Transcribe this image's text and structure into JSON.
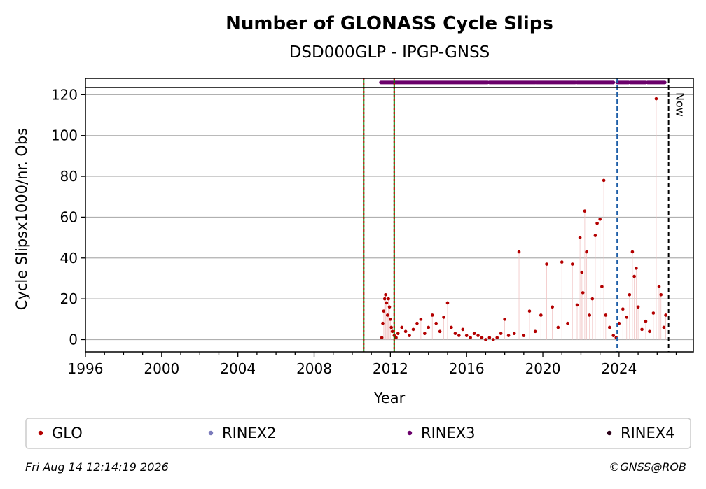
{
  "footer": {
    "timestamp": "Fri Aug 14 12:14:19 2026",
    "copyright": "©GNSS@ROB"
  },
  "chart_data": {
    "type": "scatter",
    "title": "Number of GLONASS Cycle Slips",
    "subtitle": "DSD000GLP - IPGP-GNSS",
    "xlabel": "Year",
    "ylabel": "Cycle Slipsx1000/nr. Obs",
    "xlim": [
      1996,
      2027.9
    ],
    "ylim": [
      -6,
      128
    ],
    "xticks": [
      1996,
      2000,
      2004,
      2008,
      2012,
      2016,
      2020,
      2024
    ],
    "yticks": [
      0,
      20,
      40,
      60,
      80,
      100,
      120
    ],
    "grid": "horizontal",
    "legend_position": "bottom",
    "legend": [
      {
        "name": "GLO",
        "color": "#b30000"
      },
      {
        "name": "RINEX2",
        "color": "#7b7bbb"
      },
      {
        "name": "RINEX3",
        "color": "#6b006b"
      },
      {
        "name": "RINEX4",
        "color": "#2a0018"
      }
    ],
    "vertical_lines": [
      {
        "x": 2010.6,
        "style": "dashed",
        "colors": [
          "#008000",
          "#cc0000"
        ]
      },
      {
        "x": 2012.2,
        "style": "dashed",
        "colors": [
          "#008000",
          "#cc0000"
        ]
      },
      {
        "x": 2023.9,
        "style": "dashed",
        "colors": [
          "#1f5fa8"
        ]
      },
      {
        "x": 2026.6,
        "style": "dashed",
        "colors": [
          "#000000"
        ],
        "label": "Now"
      }
    ],
    "top_bar": {
      "y": 126,
      "color": "#6b006b",
      "segments": [
        [
          2011.5,
          2017.1
        ],
        [
          2017.2,
          2019.6
        ],
        [
          2019.65,
          2021.7
        ],
        [
          2021.8,
          2023.7
        ],
        [
          2023.9,
          2024.5
        ],
        [
          2024.6,
          2025.4
        ],
        [
          2025.5,
          2026.4
        ]
      ]
    },
    "series": [
      {
        "name": "GLO",
        "color": "#b30000",
        "x": [
          2011.55,
          2011.6,
          2011.65,
          2011.7,
          2011.75,
          2011.8,
          2011.85,
          2011.9,
          2011.95,
          2012.0,
          2012.05,
          2012.1,
          2012.2,
          2012.3,
          2012.4,
          2012.6,
          2012.8,
          2013.0,
          2013.2,
          2013.4,
          2013.6,
          2013.8,
          2014.0,
          2014.2,
          2014.4,
          2014.6,
          2014.8,
          2015.0,
          2015.2,
          2015.4,
          2015.6,
          2015.8,
          2016.0,
          2016.2,
          2016.4,
          2016.6,
          2016.8,
          2017.0,
          2017.2,
          2017.4,
          2017.6,
          2017.8,
          2018.0,
          2018.2,
          2018.5,
          2018.75,
          2019.0,
          2019.3,
          2019.6,
          2019.9,
          2020.2,
          2020.5,
          2020.8,
          2021.0,
          2021.3,
          2021.55,
          2021.8,
          2021.95,
          2022.05,
          2022.1,
          2022.2,
          2022.3,
          2022.45,
          2022.6,
          2022.75,
          2022.85,
          2023.0,
          2023.1,
          2023.2,
          2023.3,
          2023.5,
          2023.7,
          2023.85,
          2024.0,
          2024.2,
          2024.4,
          2024.55,
          2024.7,
          2024.8,
          2024.9,
          2025.0,
          2025.2,
          2025.4,
          2025.6,
          2025.8,
          2025.95,
          2026.1,
          2026.2,
          2026.35,
          2026.45
        ],
        "y": [
          1,
          8,
          14,
          20,
          22,
          18,
          12,
          20,
          16,
          10,
          6,
          4,
          2,
          1,
          3,
          6,
          4,
          2,
          5,
          8,
          10,
          3,
          6,
          12,
          8,
          4,
          11,
          18,
          6,
          3,
          2,
          5,
          2,
          1,
          3,
          2,
          1,
          0,
          1,
          0,
          1,
          3,
          10,
          2,
          3,
          43,
          2,
          14,
          4,
          12,
          37,
          16,
          6,
          38,
          8,
          37,
          17,
          50,
          33,
          23,
          63,
          43,
          12,
          20,
          51,
          57,
          59,
          26,
          78,
          12,
          6,
          2,
          1,
          8,
          15,
          11,
          22,
          43,
          31,
          35,
          16,
          5,
          9,
          4,
          13,
          118,
          26,
          22,
          6,
          12
        ]
      }
    ]
  }
}
